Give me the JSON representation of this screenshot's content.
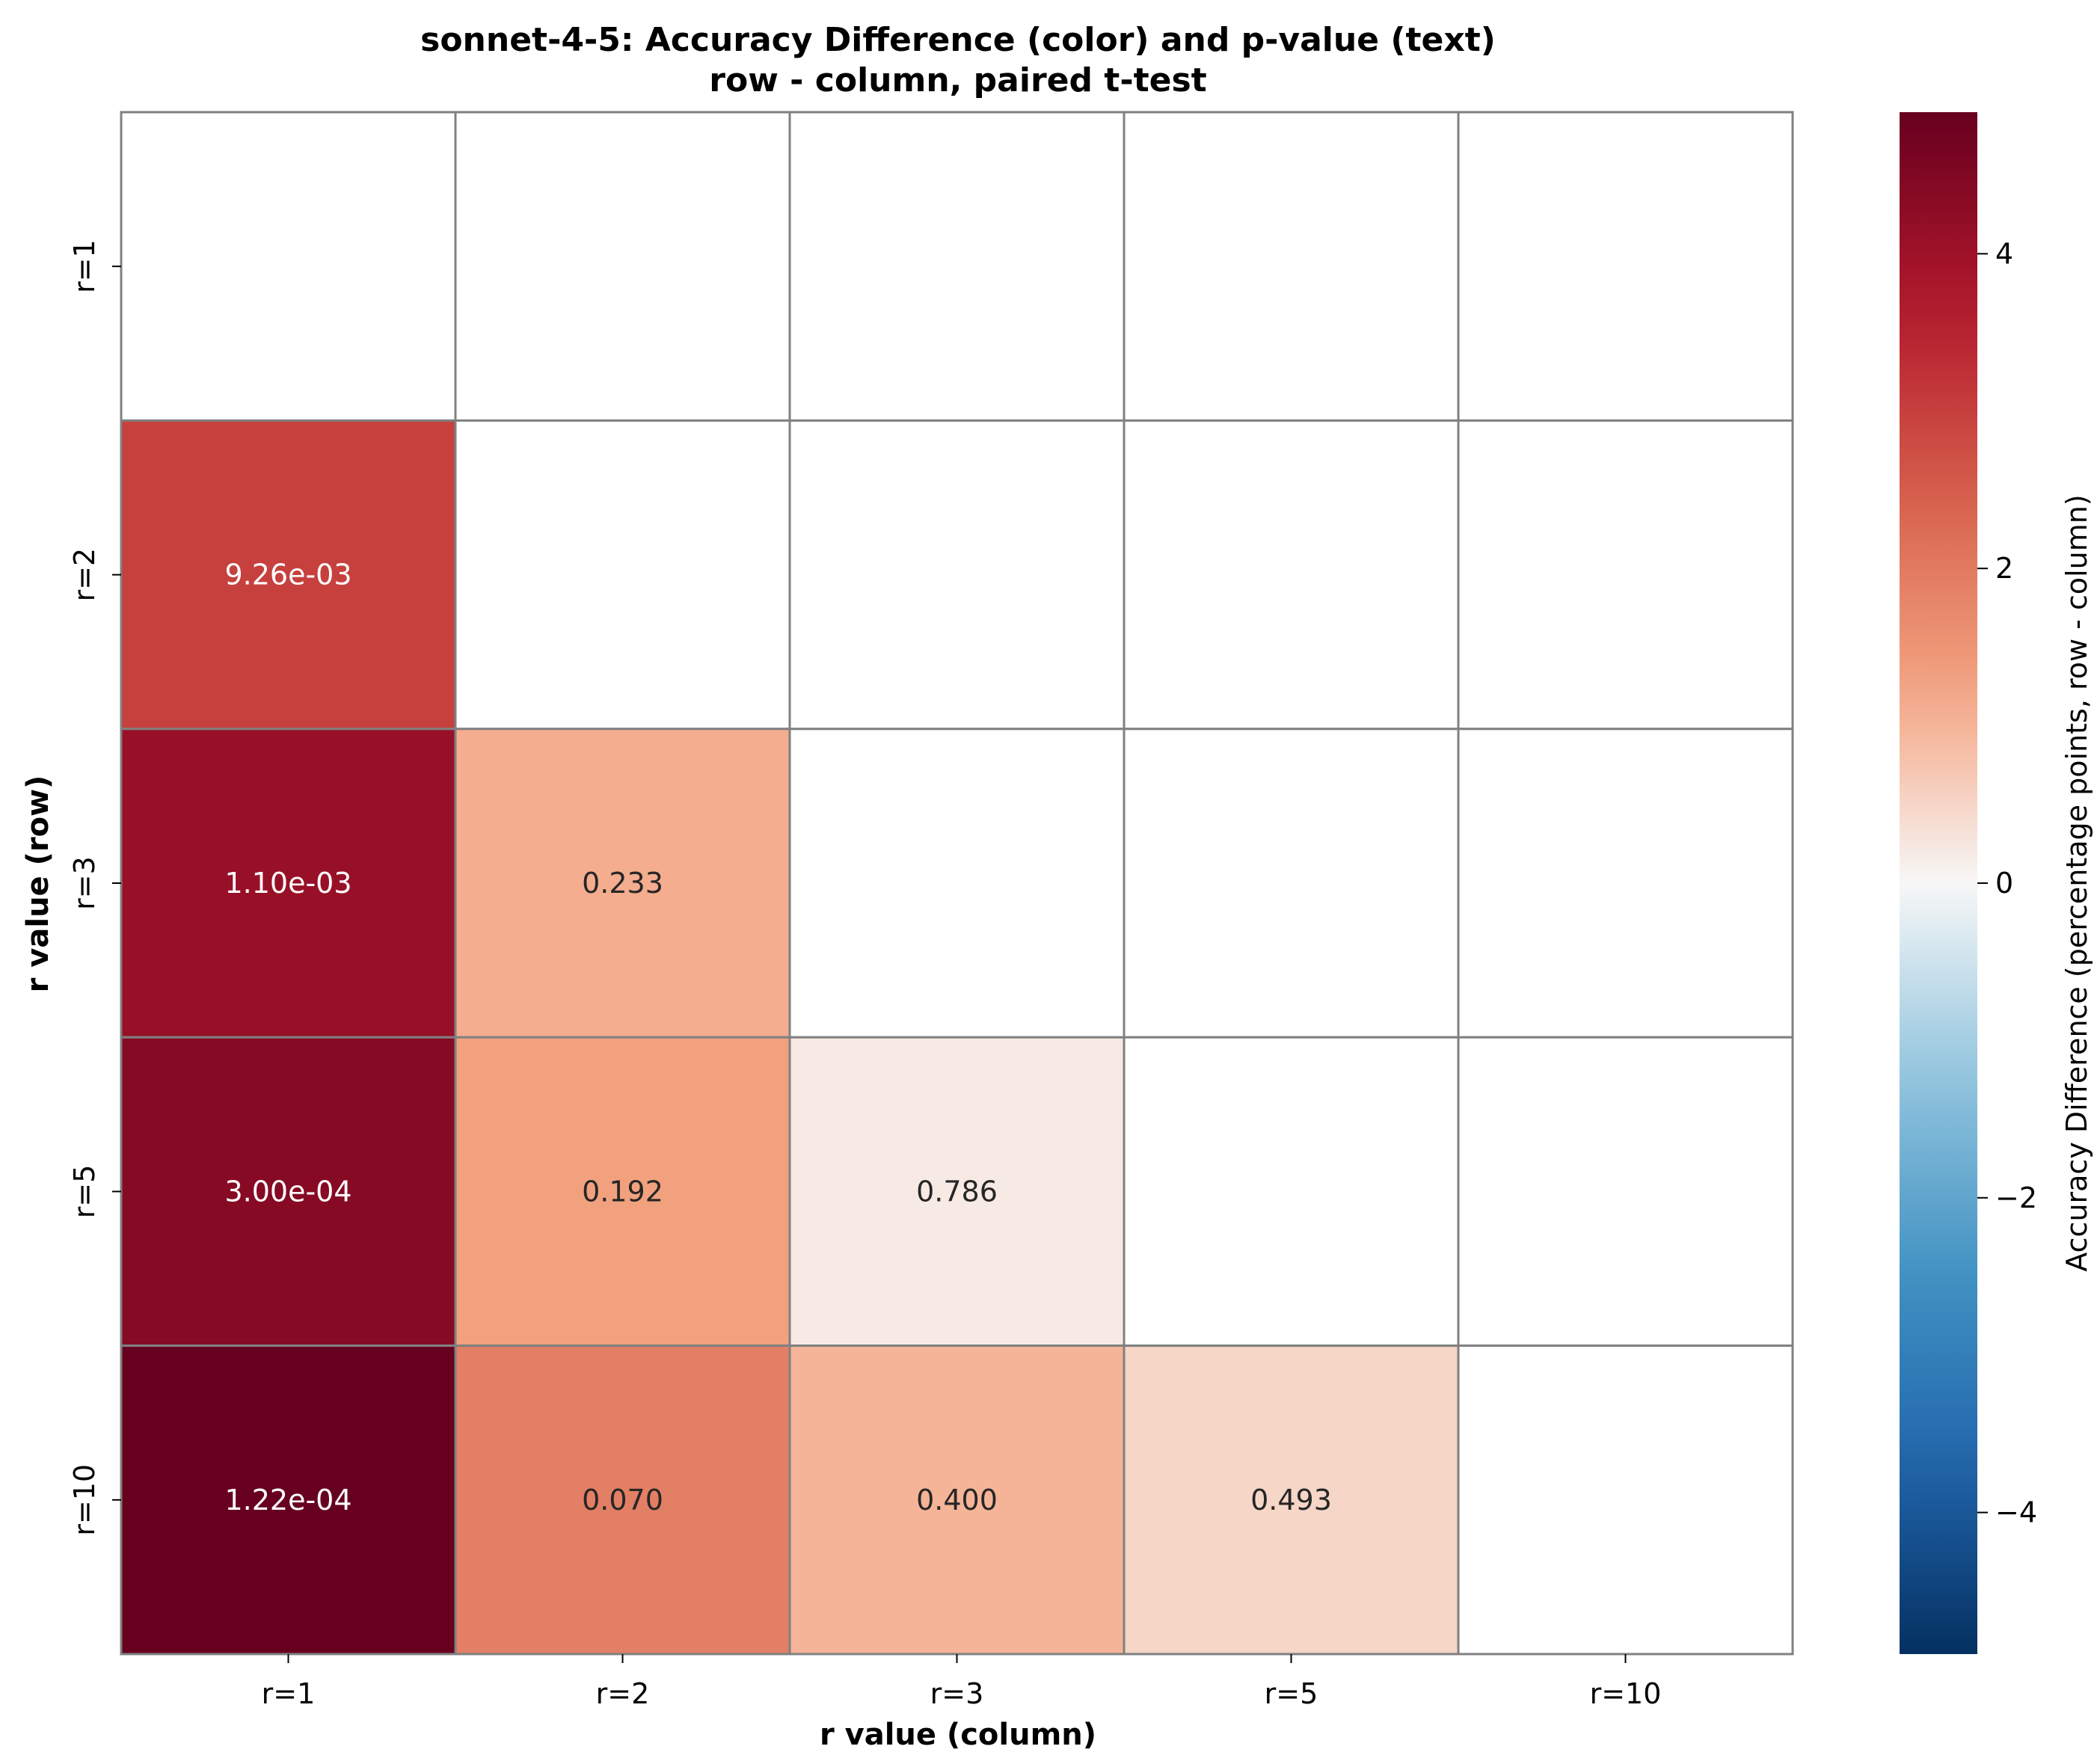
{
  "chart_data": {
    "type": "heatmap",
    "title_lines": [
      "sonnet-4-5: Accuracy Difference (color) and p-value (text)",
      "row - column, paired t-test"
    ],
    "xlabel": "r value (column)",
    "ylabel": "r value (row)",
    "x_categories": [
      "r=1",
      "r=2",
      "r=3",
      "r=5",
      "r=10"
    ],
    "y_categories": [
      "r=1",
      "r=2",
      "r=3",
      "r=5",
      "r=10"
    ],
    "colorbar": {
      "label": "Accuracy Difference (percentage points, row - column)",
      "colormap": "RdBu_r",
      "vmin": -4.9,
      "vmax": 4.9,
      "ticks": [
        -4,
        -2,
        0,
        2,
        4
      ],
      "tick_labels": [
        "−4",
        "−2",
        "0",
        "2",
        "4"
      ]
    },
    "cells": [
      {
        "row": "r=2",
        "col": "r=1",
        "difference": 3.0,
        "p_label": "9.26e-03"
      },
      {
        "row": "r=3",
        "col": "r=1",
        "difference": 4.1,
        "p_label": "1.10e-03"
      },
      {
        "row": "r=3",
        "col": "r=2",
        "difference": 1.1,
        "p_label": "0.233"
      },
      {
        "row": "r=5",
        "col": "r=1",
        "difference": 4.4,
        "p_label": "3.00e-04"
      },
      {
        "row": "r=5",
        "col": "r=2",
        "difference": 1.3,
        "p_label": "0.192"
      },
      {
        "row": "r=5",
        "col": "r=3",
        "difference": 0.2,
        "p_label": "0.786"
      },
      {
        "row": "r=10",
        "col": "r=1",
        "difference": 4.9,
        "p_label": "1.22e-04"
      },
      {
        "row": "r=10",
        "col": "r=2",
        "difference": 1.9,
        "p_label": "0.070"
      },
      {
        "row": "r=10",
        "col": "r=3",
        "difference": 1.0,
        "p_label": "0.400"
      },
      {
        "row": "r=10",
        "col": "r=5",
        "difference": 0.5,
        "p_label": "0.493"
      }
    ],
    "colors": {
      "grid_line": "#808080",
      "empty_cell": "#ffffff",
      "text_dark": "#262626",
      "text_light": "#ffffff"
    }
  }
}
